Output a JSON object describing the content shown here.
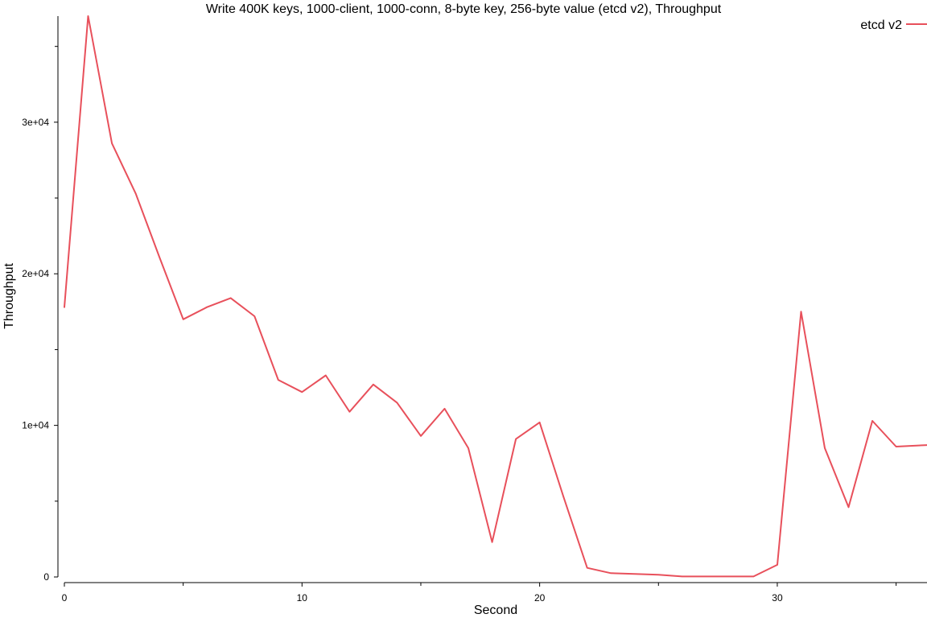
{
  "chart_data": {
    "type": "line",
    "title": "Write 400K keys, 1000-client, 1000-conn, 8-byte key, 256-byte value (etcd v2), Throughput",
    "xlabel": "Second",
    "ylabel": "Throughput",
    "xlim": [
      0,
      36.3
    ],
    "ylim": [
      0,
      37000
    ],
    "xticks": [
      0,
      10,
      20,
      30
    ],
    "xtick_labels": [
      "0",
      "10",
      "20",
      "30"
    ],
    "xticks_minor": [
      5,
      15,
      25,
      35
    ],
    "yticks": [
      0,
      10000,
      20000,
      30000
    ],
    "ytick_labels": [
      "0",
      "1e+04",
      "2e+04",
      "3e+04"
    ],
    "yticks_minor": [
      5000,
      15000,
      25000,
      35000
    ],
    "legend_position": "top-right",
    "series": [
      {
        "name": "etcd v2",
        "color": "#e8505b",
        "x": [
          0,
          1,
          2,
          3,
          4,
          5,
          6,
          7,
          8,
          9,
          10,
          11,
          12,
          13,
          14,
          15,
          16,
          17,
          18,
          19,
          20,
          21,
          22,
          23,
          24,
          25,
          26,
          27,
          28,
          29,
          30,
          31,
          32,
          33,
          34,
          35,
          36.3
        ],
        "y": [
          17800,
          37000,
          28600,
          25300,
          21100,
          17000,
          17800,
          18400,
          17200,
          13000,
          12200,
          13300,
          10900,
          12700,
          11500,
          9300,
          11100,
          8500,
          2300,
          9100,
          10200,
          5300,
          600,
          250,
          200,
          150,
          30,
          30,
          30,
          30,
          800,
          17500,
          8500,
          4600,
          10300,
          8600,
          8700
        ]
      }
    ]
  }
}
